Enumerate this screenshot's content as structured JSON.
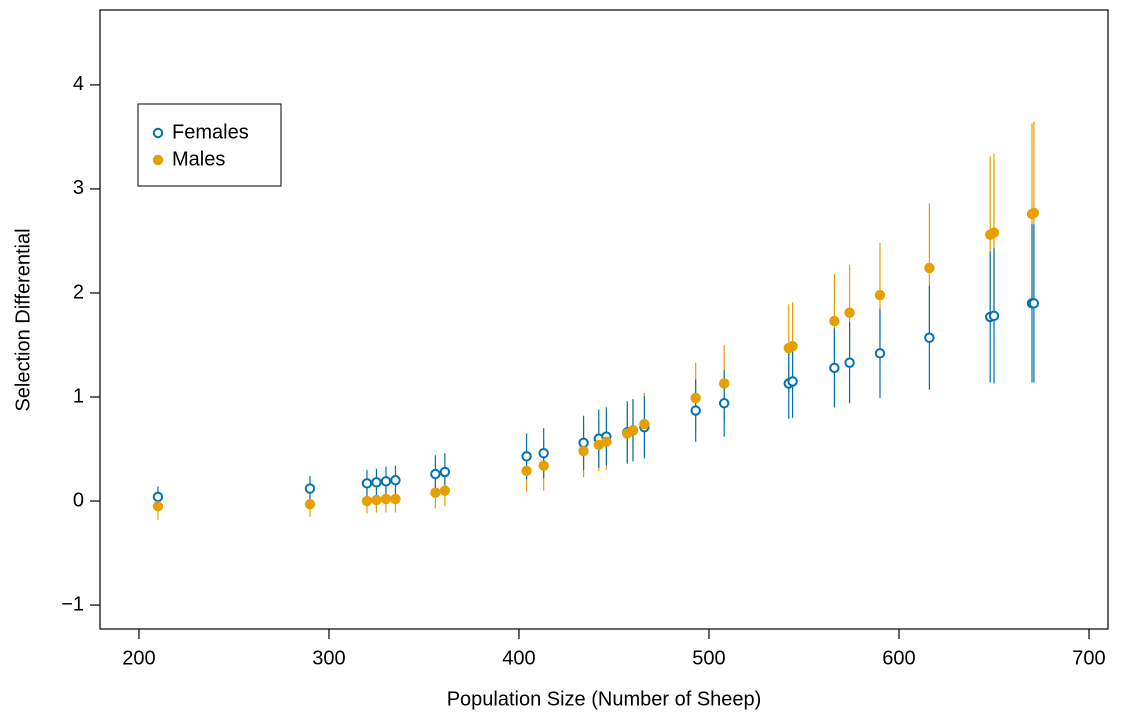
{
  "chart_data": {
    "type": "scatter",
    "xlabel": "Population Size (Number of Sheep)",
    "ylabel": "Selection Differential",
    "x": [
      210,
      290,
      320,
      325,
      330,
      335,
      356,
      361,
      404,
      413,
      434,
      442,
      446,
      457,
      460,
      466,
      493,
      508,
      542,
      544,
      566,
      574,
      590,
      616,
      648,
      650,
      670,
      671
    ],
    "series": [
      {
        "name": "Females",
        "color": "#0072b2",
        "marker": "open",
        "values": [
          0.04,
          0.12,
          0.17,
          0.18,
          0.19,
          0.2,
          0.26,
          0.28,
          0.43,
          0.46,
          0.56,
          0.6,
          0.62,
          0.66,
          0.68,
          0.71,
          0.87,
          0.94,
          1.13,
          1.15,
          1.28,
          1.33,
          1.42,
          1.57,
          1.77,
          1.78,
          1.9,
          1.9
        ],
        "errors": [
          0.1,
          0.12,
          0.13,
          0.13,
          0.14,
          0.14,
          0.18,
          0.18,
          0.22,
          0.24,
          0.26,
          0.28,
          0.28,
          0.3,
          0.3,
          0.3,
          0.3,
          0.32,
          0.34,
          0.35,
          0.38,
          0.39,
          0.43,
          0.5,
          0.63,
          0.65,
          0.76,
          0.76
        ]
      },
      {
        "name": "Males",
        "color": "#e69f00",
        "marker": "filled",
        "values": [
          -0.05,
          -0.03,
          0.0,
          0.01,
          0.02,
          0.02,
          0.08,
          0.1,
          0.29,
          0.34,
          0.48,
          0.54,
          0.57,
          0.65,
          0.68,
          0.74,
          0.99,
          1.13,
          1.47,
          1.49,
          1.73,
          1.81,
          1.98,
          2.24,
          2.56,
          2.58,
          2.76,
          2.77
        ],
        "errors": [
          0.13,
          0.12,
          0.12,
          0.12,
          0.13,
          0.13,
          0.15,
          0.15,
          0.2,
          0.24,
          0.25,
          0.25,
          0.27,
          0.28,
          0.28,
          0.3,
          0.34,
          0.37,
          0.42,
          0.42,
          0.45,
          0.46,
          0.5,
          0.62,
          0.75,
          0.76,
          0.87,
          0.88
        ]
      }
    ],
    "xlim": [
      179.5,
      710
    ],
    "ylim": [
      -1.23,
      4.72
    ],
    "xticks": [
      200,
      300,
      400,
      500,
      600,
      700
    ],
    "yticks": [
      {
        "value": -1,
        "label": "−1"
      },
      0,
      1,
      2,
      3,
      4
    ],
    "legend": "upper left"
  }
}
